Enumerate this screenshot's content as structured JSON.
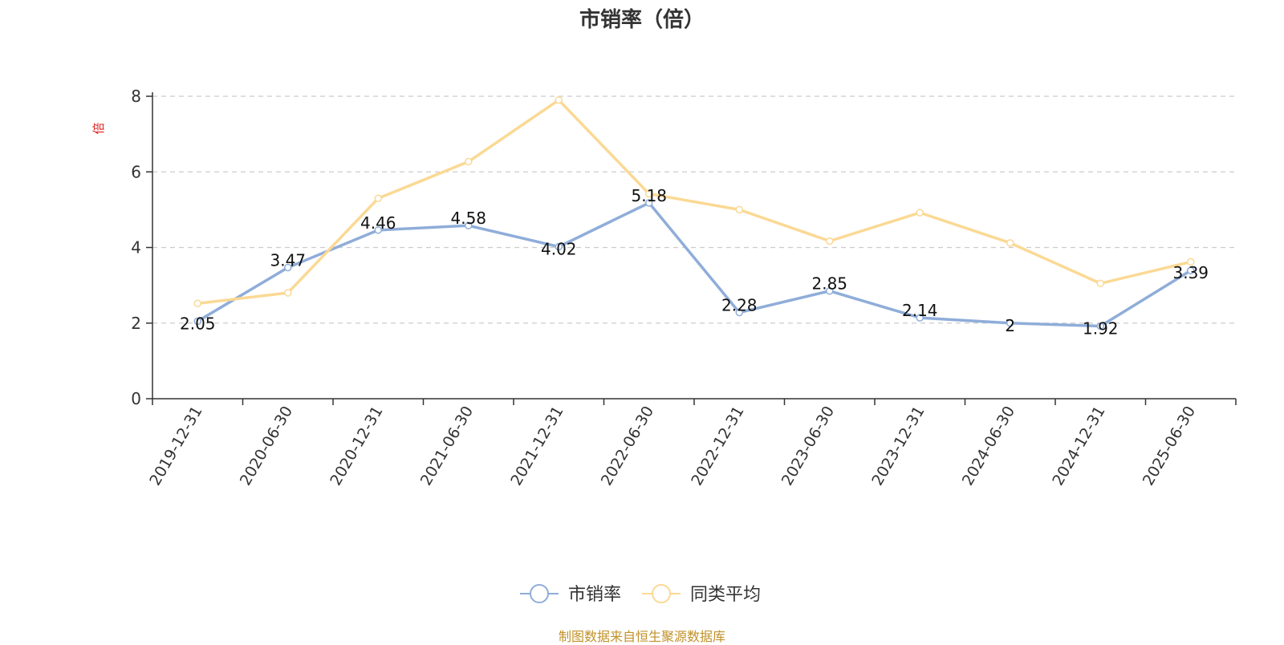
{
  "source": "制图数据来自恒生聚源数据库",
  "chart_data": {
    "type": "line",
    "title": "市销率（倍）",
    "ylabel": "倍",
    "xlabel": "",
    "ylim": [
      0,
      8
    ],
    "yticks": [
      0,
      2,
      4,
      6,
      8
    ],
    "grid": true,
    "legend_position": "bottom",
    "categories": [
      "2019-12-31",
      "2020-06-30",
      "2020-12-31",
      "2021-06-30",
      "2021-12-31",
      "2022-06-30",
      "2022-12-31",
      "2023-06-30",
      "2023-12-31",
      "2024-06-30",
      "2024-12-31",
      "2025-06-30"
    ],
    "series": [
      {
        "name": "市销率",
        "color": "#8fadd9",
        "values": [
          2.05,
          3.47,
          4.46,
          4.58,
          4.02,
          5.18,
          2.28,
          2.85,
          2.14,
          2,
          1.92,
          3.39
        ],
        "data_labels": [
          "2.05",
          "3.47",
          "4.46",
          "4.58",
          "4.02",
          "5.18",
          "2.28",
          "2.85",
          "2.14",
          "2",
          "1.92",
          "3.39"
        ]
      },
      {
        "name": "同类平均",
        "color": "#fbd994",
        "values": [
          2.52,
          2.8,
          5.3,
          6.27,
          7.9,
          5.42,
          5.0,
          4.17,
          4.92,
          4.12,
          3.05,
          3.62
        ]
      }
    ]
  }
}
